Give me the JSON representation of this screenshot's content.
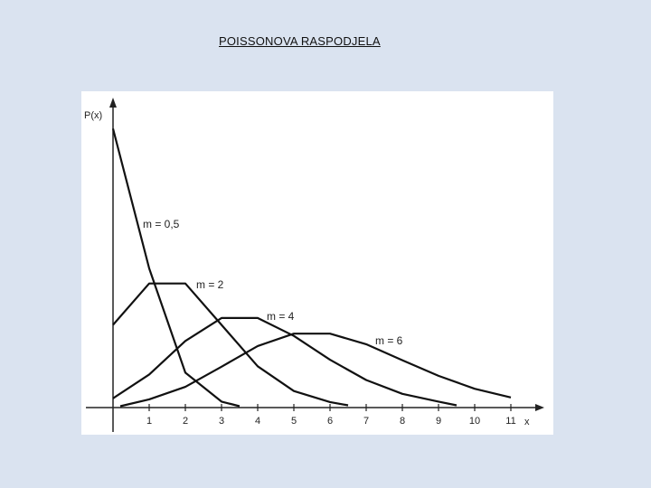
{
  "title": "POISSONOVA RASPODJELA",
  "chart_data": {
    "type": "line",
    "title": "",
    "xlabel": "x",
    "ylabel": "P(x)",
    "x_ticks": [
      "1",
      "2",
      "3",
      "4",
      "5",
      "6",
      "7",
      "8",
      "9",
      "10",
      "11"
    ],
    "xlim": [
      0,
      11.8
    ],
    "ylim": [
      0,
      0.65
    ],
    "grid": false,
    "series": [
      {
        "name": "m = 0,5",
        "x": [
          0,
          1,
          2,
          3,
          3.5
        ],
        "y": [
          0.607,
          0.303,
          0.076,
          0.013,
          0.003
        ]
      },
      {
        "name": "m = 2",
        "x": [
          0,
          1,
          2,
          3,
          4,
          5,
          6,
          6.5
        ],
        "y": [
          0.18,
          0.27,
          0.27,
          0.18,
          0.09,
          0.036,
          0.012,
          0.005
        ]
      },
      {
        "name": "m = 4",
        "x": [
          0,
          1,
          2,
          3,
          4,
          5,
          6,
          7,
          8,
          9,
          9.5
        ],
        "y": [
          0.02,
          0.072,
          0.145,
          0.195,
          0.195,
          0.156,
          0.104,
          0.06,
          0.03,
          0.013,
          0.005
        ]
      },
      {
        "name": "m = 6",
        "x": [
          0.2,
          1,
          2,
          3,
          4,
          5,
          6,
          7,
          8,
          9,
          10,
          11
        ],
        "y": [
          0.003,
          0.018,
          0.045,
          0.089,
          0.134,
          0.161,
          0.161,
          0.138,
          0.103,
          0.069,
          0.041,
          0.022
        ]
      }
    ]
  }
}
